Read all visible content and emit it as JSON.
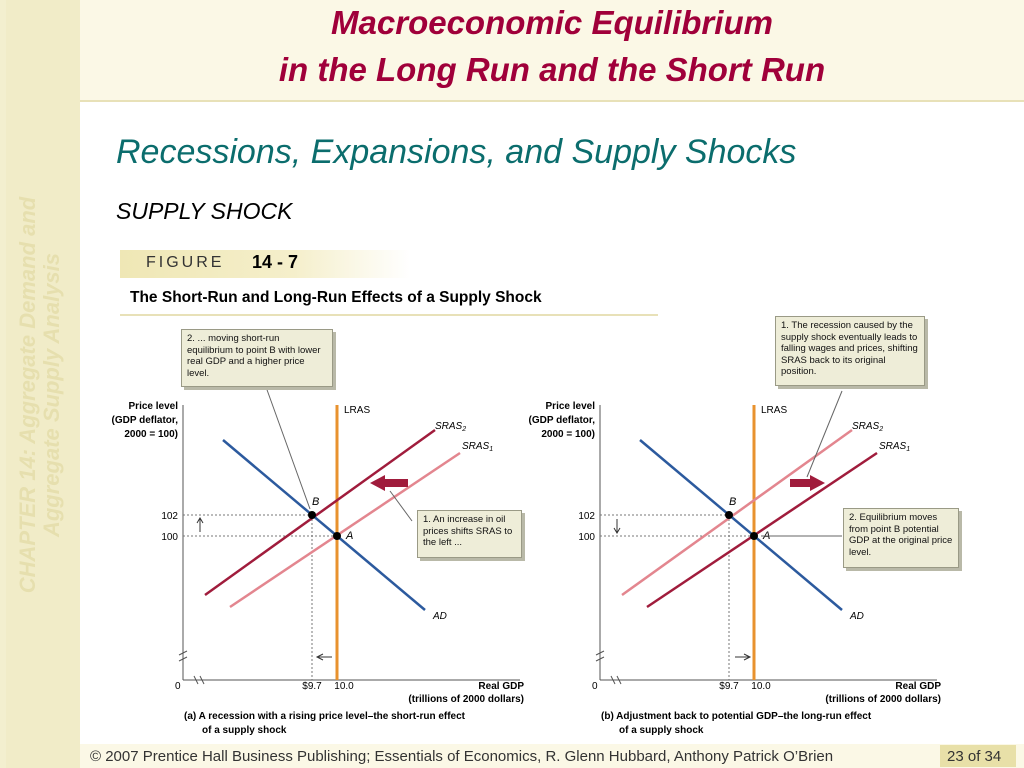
{
  "sidebar": {
    "chapter": "CHAPTER 14:  Aggregate Demand and",
    "chapter_line2": "Aggregate Supply Analysis"
  },
  "header": {
    "title_line1": "Macroeconomic Equilibrium",
    "title_line2": "in the Long Run and the Short Run"
  },
  "subtitle": "Recessions, Expansions, and Supply Shocks",
  "section_label": "SUPPLY SHOCK",
  "figure": {
    "label": "FIGURE",
    "number": "14 - 7",
    "caption": "The Short-Run and Long-Run Effects of a Supply Shock"
  },
  "callouts": {
    "a_top": "2. ... moving short-run equilibrium to point B with lower real GDP and a higher price level.",
    "a_right": "1.  An increase in oil prices shifts SRAS to the left ...",
    "b_top": "1.  The recession caused by the supply shock eventually leads to falling wages and prices, shifting SRAS back to its original position.",
    "b_right": "2. Equilibrium moves from point B potential GDP at the original price level."
  },
  "chart_data": [
    {
      "type": "line",
      "title": "(a) A recession with a rising price level–the short-run effect of a supply shock",
      "ylabel": "Price level (GDP deflator, 2000 = 100)",
      "xlabel": "Real GDP (trillions of 2000 dollars)",
      "x_ticks": [
        "0",
        "$9.7",
        "10.0"
      ],
      "y_ticks": [
        "102",
        "100"
      ],
      "series": [
        {
          "name": "LRAS",
          "color": "#e8922e"
        },
        {
          "name": "SRAS2",
          "color": "#a01c3c"
        },
        {
          "name": "SRAS1",
          "color": "#e3868f"
        },
        {
          "name": "AD",
          "color": "#2c5a9e"
        }
      ],
      "points": [
        {
          "label": "A",
          "x": 10.0,
          "y": 100
        },
        {
          "label": "B",
          "x": 9.7,
          "y": 102
        }
      ]
    },
    {
      "type": "line",
      "title": "(b) Adjustment back to potential GDP–the long-run effect of a supply shock",
      "ylabel": "Price level (GDP deflator, 2000 = 100)",
      "xlabel": "Real GDP (trillions of 2000 dollars)",
      "x_ticks": [
        "0",
        "$9.7",
        "10.0"
      ],
      "y_ticks": [
        "102",
        "100"
      ],
      "series": [
        {
          "name": "LRAS",
          "color": "#e8922e"
        },
        {
          "name": "SRAS2",
          "color": "#e3868f"
        },
        {
          "name": "SRAS1",
          "color": "#a01c3c"
        },
        {
          "name": "AD",
          "color": "#2c5a9e"
        }
      ],
      "points": [
        {
          "label": "A",
          "x": 10.0,
          "y": 100
        },
        {
          "label": "B",
          "x": 9.7,
          "y": 102
        }
      ]
    }
  ],
  "panel_text": {
    "ylabel_1": "Price level",
    "ylabel_2": "(GDP deflator,",
    "ylabel_3": "2000 = 100)",
    "xlabel_1": "Real GDP",
    "xlabel_2": "(trillions of 2000 dollars)",
    "lras": "LRAS",
    "sras": "SRAS",
    "sub2": "2",
    "sub1": "1",
    "ad": "AD",
    "point_a": "A",
    "point_b": "B",
    "tick_102": "102",
    "tick_100": "100",
    "tick_0": "0",
    "tick_97": "$9.7",
    "tick_10": "10.0",
    "caption_a_1": "(a) A recession with a rising price level–the short-run effect",
    "caption_a_2": "of a supply shock",
    "caption_b_1": "(b) Adjustment back to potential GDP–the long-run effect",
    "caption_b_2": "of a supply shock"
  },
  "footer": {
    "text": "© 2007 Prentice Hall Business Publishing; Essentials of Economics,  R. Glenn Hubbard, Anthony Patrick O’Brien",
    "page": "23 of 34"
  },
  "colors": {
    "title": "#a0003a",
    "subtitle": "#0b6d6d",
    "lras": "#e8922e",
    "sras_dark": "#a01c3c",
    "sras_light": "#e3868f",
    "ad": "#2c5a9e"
  }
}
